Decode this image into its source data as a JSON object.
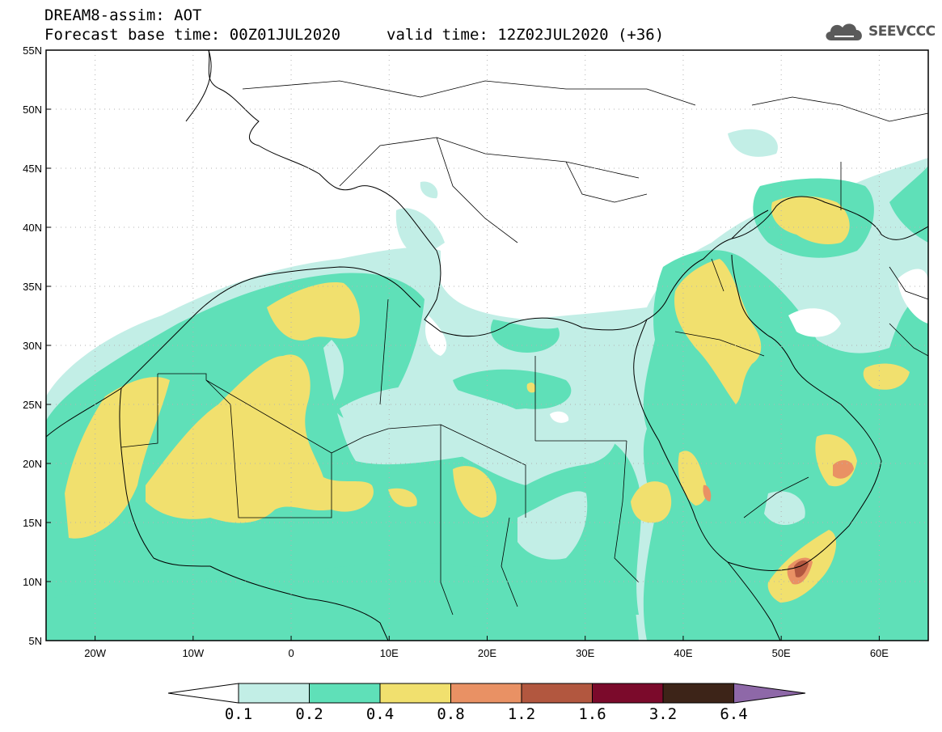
{
  "header": {
    "title_line1": "DREAM8-assim: AOT",
    "title_line2": "Forecast base time: 00Z01JUL2020",
    "valid_time": "valid time: 12Z02JUL2020 (+36)",
    "logo_text": "SEEVCCC",
    "logo_icon": "cloud-icon"
  },
  "map": {
    "lon_range": [
      -25,
      65
    ],
    "lat_range": [
      5,
      55
    ],
    "lon_ticks": [
      {
        "v": -20,
        "label": "20W"
      },
      {
        "v": -10,
        "label": "10W"
      },
      {
        "v": 0,
        "label": "0"
      },
      {
        "v": 10,
        "label": "10E"
      },
      {
        "v": 20,
        "label": "20E"
      },
      {
        "v": 30,
        "label": "30E"
      },
      {
        "v": 40,
        "label": "40E"
      },
      {
        "v": 50,
        "label": "50E"
      },
      {
        "v": 60,
        "label": "60E"
      }
    ],
    "lat_ticks": [
      {
        "v": 5,
        "label": "5N"
      },
      {
        "v": 10,
        "label": "10N"
      },
      {
        "v": 15,
        "label": "15N"
      },
      {
        "v": 20,
        "label": "20N"
      },
      {
        "v": 25,
        "label": "25N"
      },
      {
        "v": 30,
        "label": "30N"
      },
      {
        "v": 35,
        "label": "35N"
      },
      {
        "v": 40,
        "label": "40N"
      },
      {
        "v": 45,
        "label": "45N"
      },
      {
        "v": 50,
        "label": "50N"
      },
      {
        "v": 55,
        "label": "55N"
      }
    ],
    "gridlines": "dotted"
  },
  "colorbar": {
    "levels": [
      "0.1",
      "0.2",
      "0.4",
      "0.8",
      "1.2",
      "1.6",
      "3.2",
      "6.4"
    ],
    "colors": [
      "#ffffff",
      "#c2eee6",
      "#5fe0b8",
      "#f1e06e",
      "#e99164",
      "#b2573f",
      "#7b0a2b",
      "#3d2418",
      "#8e68a8"
    ]
  }
}
